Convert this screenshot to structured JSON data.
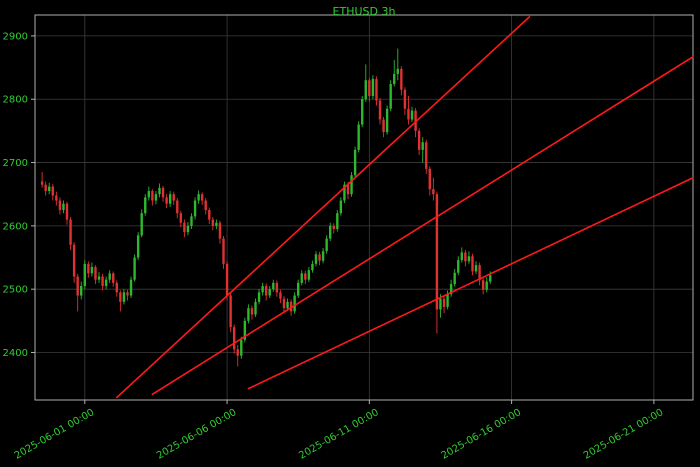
{
  "window": {
    "background": "#000000"
  },
  "chart_data": {
    "type": "candlestick",
    "title": "ETHUSD 3h",
    "symbol": "ETHUSD",
    "interval": "3h",
    "legend_position": "none",
    "grid": true,
    "colors": {
      "up": "#2eb82e",
      "down": "#e03232",
      "trendline": "#ff1a1a",
      "grid": "#3d3d3d",
      "label": "#32cd32",
      "title": "#32cd32",
      "spine": "#b0b0b0",
      "background": "#000000"
    },
    "ylim": [
      2325,
      2933
    ],
    "xlim": [
      -2,
      183
    ],
    "y_ticks": [
      2400,
      2500,
      2600,
      2700,
      2800,
      2900
    ],
    "x_ticks": [
      {
        "index": 12,
        "label": "2025-06-01 00:00"
      },
      {
        "index": 52,
        "label": "2025-06-06 00:00"
      },
      {
        "index": 92,
        "label": "2025-06-11 00:00"
      },
      {
        "index": 132,
        "label": "2025-06-16 00:00"
      },
      {
        "index": 172,
        "label": "2025-06-21 00:00"
      }
    ],
    "trendlines": [
      {
        "x1": 21,
        "y1": 2329,
        "x2": 137,
        "y2": 2930
      },
      {
        "x1": 31,
        "y1": 2334,
        "x2": 183,
        "y2": 2867
      },
      {
        "x1": 58,
        "y1": 2343,
        "x2": 183,
        "y2": 2676
      }
    ],
    "candles": [
      [
        2670,
        2685,
        2660,
        2665
      ],
      [
        2665,
        2670,
        2648,
        2655
      ],
      [
        2655,
        2668,
        2650,
        2662
      ],
      [
        2662,
        2666,
        2640,
        2648
      ],
      [
        2648,
        2654,
        2632,
        2640
      ],
      [
        2640,
        2645,
        2618,
        2625
      ],
      [
        2625,
        2640,
        2620,
        2635
      ],
      [
        2635,
        2638,
        2602,
        2610
      ],
      [
        2610,
        2614,
        2562,
        2570
      ],
      [
        2570,
        2574,
        2510,
        2520
      ],
      [
        2520,
        2524,
        2465,
        2490
      ],
      [
        2490,
        2512,
        2484,
        2505
      ],
      [
        2505,
        2546,
        2500,
        2540
      ],
      [
        2540,
        2544,
        2518,
        2525
      ],
      [
        2525,
        2542,
        2520,
        2535
      ],
      [
        2535,
        2538,
        2508,
        2515
      ],
      [
        2515,
        2527,
        2510,
        2520
      ],
      [
        2520,
        2524,
        2498,
        2505
      ],
      [
        2505,
        2520,
        2500,
        2515
      ],
      [
        2515,
        2530,
        2510,
        2525
      ],
      [
        2525,
        2528,
        2504,
        2510
      ],
      [
        2510,
        2514,
        2488,
        2495
      ],
      [
        2495,
        2498,
        2465,
        2480
      ],
      [
        2480,
        2500,
        2476,
        2495
      ],
      [
        2495,
        2499,
        2482,
        2490
      ],
      [
        2490,
        2520,
        2486,
        2515
      ],
      [
        2515,
        2555,
        2512,
        2550
      ],
      [
        2550,
        2590,
        2546,
        2585
      ],
      [
        2585,
        2626,
        2582,
        2620
      ],
      [
        2620,
        2650,
        2616,
        2645
      ],
      [
        2645,
        2662,
        2640,
        2655
      ],
      [
        2655,
        2658,
        2632,
        2640
      ],
      [
        2640,
        2655,
        2634,
        2650
      ],
      [
        2650,
        2667,
        2645,
        2660
      ],
      [
        2660,
        2663,
        2638,
        2645
      ],
      [
        2645,
        2650,
        2628,
        2635
      ],
      [
        2635,
        2655,
        2630,
        2650
      ],
      [
        2650,
        2654,
        2633,
        2640
      ],
      [
        2640,
        2644,
        2612,
        2620
      ],
      [
        2620,
        2624,
        2598,
        2605
      ],
      [
        2605,
        2610,
        2582,
        2590
      ],
      [
        2590,
        2606,
        2585,
        2600
      ],
      [
        2600,
        2620,
        2595,
        2615
      ],
      [
        2615,
        2645,
        2610,
        2640
      ],
      [
        2640,
        2656,
        2635,
        2650
      ],
      [
        2650,
        2653,
        2633,
        2640
      ],
      [
        2640,
        2644,
        2618,
        2625
      ],
      [
        2625,
        2629,
        2603,
        2610
      ],
      [
        2610,
        2614,
        2593,
        2600
      ],
      [
        2600,
        2610,
        2595,
        2605
      ],
      [
        2605,
        2608,
        2572,
        2580
      ],
      [
        2580,
        2584,
        2532,
        2540
      ],
      [
        2540,
        2544,
        2482,
        2490
      ],
      [
        2490,
        2494,
        2432,
        2440
      ],
      [
        2440,
        2444,
        2398,
        2405
      ],
      [
        2405,
        2412,
        2378,
        2395
      ],
      [
        2395,
        2425,
        2390,
        2420
      ],
      [
        2420,
        2455,
        2416,
        2450
      ],
      [
        2450,
        2476,
        2446,
        2470
      ],
      [
        2470,
        2474,
        2452,
        2460
      ],
      [
        2460,
        2485,
        2456,
        2480
      ],
      [
        2480,
        2500,
        2476,
        2495
      ],
      [
        2495,
        2510,
        2490,
        2505
      ],
      [
        2505,
        2509,
        2482,
        2490
      ],
      [
        2490,
        2505,
        2486,
        2500
      ],
      [
        2500,
        2515,
        2496,
        2510
      ],
      [
        2510,
        2514,
        2488,
        2495
      ],
      [
        2495,
        2499,
        2478,
        2485
      ],
      [
        2485,
        2489,
        2462,
        2470
      ],
      [
        2470,
        2485,
        2466,
        2480
      ],
      [
        2480,
        2484,
        2458,
        2465
      ],
      [
        2465,
        2495,
        2461,
        2490
      ],
      [
        2490,
        2515,
        2486,
        2510
      ],
      [
        2510,
        2530,
        2506,
        2525
      ],
      [
        2525,
        2529,
        2508,
        2515
      ],
      [
        2515,
        2535,
        2511,
        2530
      ],
      [
        2530,
        2545,
        2526,
        2540
      ],
      [
        2540,
        2560,
        2536,
        2555
      ],
      [
        2555,
        2559,
        2538,
        2545
      ],
      [
        2545,
        2565,
        2541,
        2560
      ],
      [
        2560,
        2585,
        2556,
        2580
      ],
      [
        2580,
        2605,
        2576,
        2600
      ],
      [
        2600,
        2604,
        2588,
        2595
      ],
      [
        2595,
        2625,
        2591,
        2620
      ],
      [
        2620,
        2645,
        2616,
        2640
      ],
      [
        2640,
        2670,
        2636,
        2665
      ],
      [
        2665,
        2669,
        2642,
        2650
      ],
      [
        2650,
        2685,
        2646,
        2680
      ],
      [
        2680,
        2725,
        2676,
        2720
      ],
      [
        2720,
        2765,
        2716,
        2760
      ],
      [
        2760,
        2805,
        2756,
        2800
      ],
      [
        2800,
        2855,
        2796,
        2830
      ],
      [
        2830,
        2834,
        2796,
        2805
      ],
      [
        2805,
        2838,
        2800,
        2832
      ],
      [
        2832,
        2836,
        2790,
        2798
      ],
      [
        2798,
        2802,
        2760,
        2768
      ],
      [
        2768,
        2772,
        2740,
        2748
      ],
      [
        2748,
        2790,
        2744,
        2785
      ],
      [
        2785,
        2830,
        2781,
        2824
      ],
      [
        2824,
        2862,
        2820,
        2840
      ],
      [
        2840,
        2880,
        2830,
        2848
      ],
      [
        2848,
        2852,
        2806,
        2815
      ],
      [
        2815,
        2819,
        2775,
        2785
      ],
      [
        2785,
        2805,
        2760,
        2768
      ],
      [
        2768,
        2788,
        2764,
        2782
      ],
      [
        2782,
        2786,
        2740,
        2750
      ],
      [
        2750,
        2754,
        2712,
        2720
      ],
      [
        2720,
        2740,
        2700,
        2732
      ],
      [
        2732,
        2736,
        2682,
        2690
      ],
      [
        2690,
        2694,
        2648,
        2658
      ],
      [
        2658,
        2676,
        2640,
        2650
      ],
      [
        2650,
        2654,
        2430,
        2468
      ],
      [
        2468,
        2492,
        2455,
        2485
      ],
      [
        2485,
        2489,
        2462,
        2472
      ],
      [
        2472,
        2498,
        2468,
        2492
      ],
      [
        2492,
        2515,
        2488,
        2508
      ],
      [
        2508,
        2532,
        2504,
        2526
      ],
      [
        2526,
        2552,
        2522,
        2546
      ],
      [
        2546,
        2566,
        2542,
        2558
      ],
      [
        2558,
        2562,
        2536,
        2544
      ],
      [
        2544,
        2560,
        2540,
        2552
      ],
      [
        2552,
        2556,
        2522,
        2528
      ],
      [
        2528,
        2544,
        2524,
        2538
      ],
      [
        2538,
        2542,
        2506,
        2514
      ],
      [
        2514,
        2518,
        2492,
        2499
      ],
      [
        2499,
        2519,
        2495,
        2512
      ],
      [
        2512,
        2528,
        2508,
        2522
      ]
    ]
  }
}
